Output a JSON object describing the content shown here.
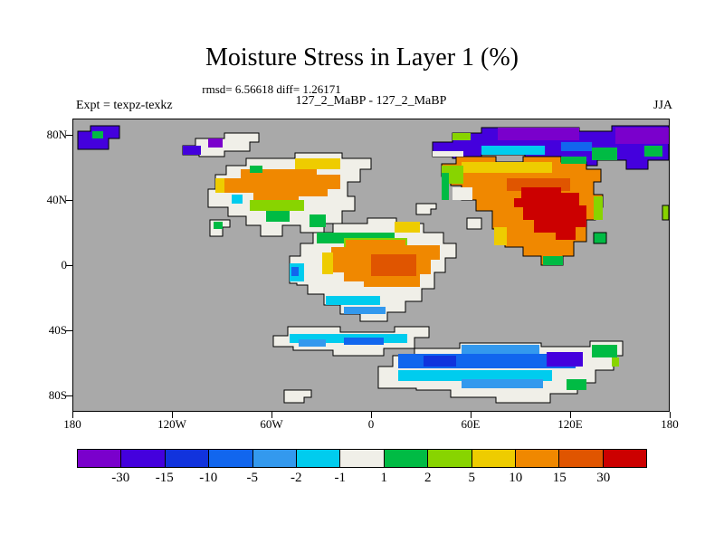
{
  "chart_data": {
    "type": "heatmap",
    "title": "Moisture Stress in Layer 1 (%)",
    "stats_line": "rmsd= 6.56618 diff= 1.26171",
    "experiment_label": "Expt = texpz-texkz",
    "comparison_label": "127_2_MaBP - 127_2_MaBP",
    "season_label": "JJA",
    "x_axis": {
      "ticks": [
        "180",
        "120W",
        "60W",
        "0",
        "60E",
        "120E",
        "180"
      ]
    },
    "y_axis": {
      "ticks": [
        "80N",
        "40N",
        "0",
        "40S",
        "80S"
      ]
    },
    "colorbar": {
      "labels": [
        "-30",
        "-15",
        "-10",
        "-5",
        "-2",
        "-1",
        "1",
        "2",
        "5",
        "10",
        "15",
        "30"
      ],
      "colors": [
        "#7a00cc",
        "#4400dd",
        "#1133dd",
        "#1166ee",
        "#3399ee",
        "#00ccee",
        "#f0efe8",
        "#00bb44",
        "#88d400",
        "#eecc00",
        "#f08800",
        "#e05500",
        "#cc0000"
      ]
    },
    "map": {
      "background": "#a9a9a9",
      "land_neutral": "#f0efe8"
    },
    "regions": [
      {
        "area": "high northern latitudes 60N-85N across Arctic and Eurasia",
        "values": "-10 to below -30 (blue to purple)"
      },
      {
        "area": "North America mid-latitudes 35N-60N",
        "values": "+5 to +15 (yellow-orange) with near-zero patches"
      },
      {
        "area": "East Asia 20N-50N",
        "values": "+10 to above +30 (orange with red core)"
      },
      {
        "area": "tropical continent 20S-15N",
        "values": "+2 to +15 in north, -1 to +1 (white) in south"
      },
      {
        "area": "southern mid/high latitudes 45S-75S",
        "values": "-1 to -15 (cyan-blue bands)"
      }
    ]
  }
}
